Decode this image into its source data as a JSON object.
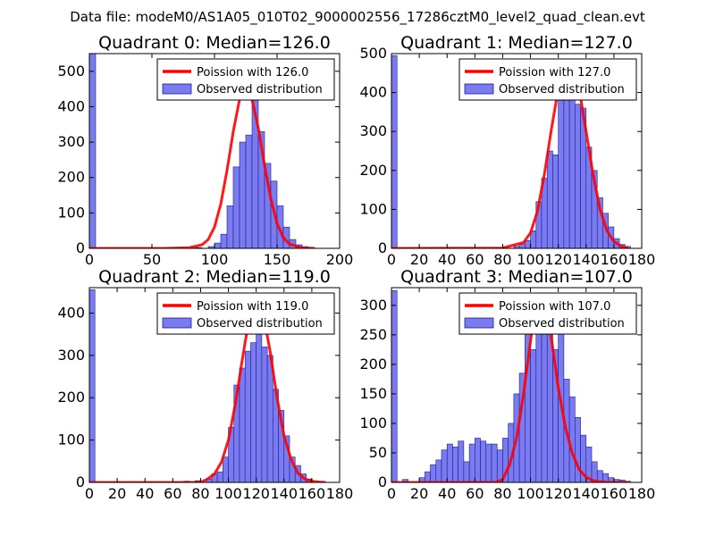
{
  "figure_title": "Data file: modeM0/AS1A05_010T02_9000002556_17286cztM0_level2_quad_clean.evt",
  "colors": {
    "hist_fill": "#7b7bf0",
    "hist_edge": "#1c1c9a",
    "poisson_line": "#ff0000",
    "axis": "#000000",
    "legend_border": "#000000"
  },
  "chart_data": [
    {
      "type": "bar",
      "title": "Quadrant 0: Median=126.0",
      "xlim": [
        0,
        200
      ],
      "ylim": [
        0,
        550
      ],
      "xticks": [
        0,
        50,
        100,
        150,
        200
      ],
      "yticks": [
        0,
        100,
        200,
        300,
        400,
        500
      ],
      "bin_width": 5,
      "hist": {
        "name": "Observed distribution",
        "bins": [
          [
            0,
            555
          ],
          [
            85,
            2
          ],
          [
            95,
            5
          ],
          [
            100,
            15
          ],
          [
            105,
            40
          ],
          [
            110,
            120
          ],
          [
            115,
            230
          ],
          [
            120,
            300
          ],
          [
            125,
            320
          ],
          [
            130,
            420
          ],
          [
            135,
            330
          ],
          [
            140,
            240
          ],
          [
            145,
            190
          ],
          [
            150,
            120
          ],
          [
            155,
            60
          ],
          [
            160,
            25
          ],
          [
            165,
            10
          ],
          [
            170,
            5
          ],
          [
            175,
            2
          ]
        ]
      },
      "poisson": {
        "name": "Poission with 126.0",
        "mean": 126.0,
        "x": [
          0,
          60,
          80,
          90,
          95,
          100,
          105,
          110,
          115,
          120,
          125,
          130,
          135,
          140,
          145,
          150,
          155,
          160,
          170,
          180
        ],
        "y": [
          0,
          0,
          2,
          10,
          25,
          60,
          125,
          220,
          330,
          420,
          455,
          420,
          340,
          235,
          140,
          70,
          30,
          12,
          1,
          0
        ]
      }
    },
    {
      "type": "bar",
      "title": "Quadrant 1: Median=127.0",
      "xlim": [
        0,
        180
      ],
      "ylim": [
        0,
        500
      ],
      "xticks": [
        0,
        20,
        40,
        60,
        80,
        100,
        120,
        140,
        160,
        180
      ],
      "yticks": [
        0,
        100,
        200,
        300,
        400,
        500
      ],
      "bin_width": 4,
      "hist": {
        "name": "Observed distribution",
        "bins": [
          [
            0,
            495
          ],
          [
            80,
            2
          ],
          [
            88,
            5
          ],
          [
            92,
            10
          ],
          [
            96,
            20
          ],
          [
            100,
            45
          ],
          [
            104,
            120
          ],
          [
            108,
            180
          ],
          [
            112,
            250
          ],
          [
            116,
            240
          ],
          [
            120,
            380
          ],
          [
            124,
            450
          ],
          [
            128,
            400
          ],
          [
            132,
            370
          ],
          [
            136,
            360
          ],
          [
            140,
            260
          ],
          [
            144,
            200
          ],
          [
            148,
            130
          ],
          [
            152,
            90
          ],
          [
            156,
            55
          ],
          [
            160,
            25
          ],
          [
            164,
            10
          ],
          [
            168,
            5
          ]
        ]
      },
      "poisson": {
        "name": "Poission with 127.0",
        "mean": 127.0,
        "x": [
          0,
          80,
          95,
          100,
          105,
          110,
          115,
          120,
          125,
          128,
          130,
          135,
          140,
          145,
          150,
          155,
          160,
          165,
          170
        ],
        "y": [
          0,
          1,
          15,
          40,
          95,
          190,
          305,
          410,
          470,
          480,
          470,
          410,
          300,
          190,
          100,
          45,
          18,
          6,
          1
        ]
      }
    },
    {
      "type": "bar",
      "title": "Quadrant 2: Median=119.0",
      "xlim": [
        0,
        180
      ],
      "ylim": [
        0,
        460
      ],
      "xticks": [
        0,
        20,
        40,
        60,
        80,
        100,
        120,
        140,
        160,
        180
      ],
      "yticks": [
        0,
        100,
        200,
        300,
        400
      ],
      "bin_width": 4,
      "hist": {
        "name": "Observed distribution",
        "bins": [
          [
            0,
            455
          ],
          [
            68,
            3
          ],
          [
            76,
            4
          ],
          [
            84,
            8
          ],
          [
            88,
            20
          ],
          [
            92,
            25
          ],
          [
            96,
            60
          ],
          [
            100,
            130
          ],
          [
            104,
            230
          ],
          [
            108,
            270
          ],
          [
            112,
            310
          ],
          [
            116,
            330
          ],
          [
            120,
            420
          ],
          [
            124,
            320
          ],
          [
            128,
            300
          ],
          [
            132,
            220
          ],
          [
            136,
            170
          ],
          [
            140,
            110
          ],
          [
            144,
            60
          ],
          [
            148,
            40
          ],
          [
            152,
            20
          ],
          [
            156,
            8
          ]
        ]
      },
      "poisson": {
        "name": "Poission with 119.0",
        "mean": 119.0,
        "x": [
          0,
          80,
          85,
          90,
          95,
          100,
          105,
          110,
          115,
          119,
          122,
          125,
          130,
          135,
          140,
          145,
          150,
          155,
          160,
          165,
          170
        ],
        "y": [
          0,
          0,
          8,
          20,
          48,
          100,
          185,
          290,
          390,
          435,
          430,
          400,
          310,
          200,
          110,
          55,
          22,
          8,
          3,
          1,
          0
        ]
      }
    },
    {
      "type": "bar",
      "title": "Quadrant 3: Median=107.0",
      "xlim": [
        0,
        180
      ],
      "ylim": [
        0,
        330
      ],
      "xticks": [
        0,
        20,
        40,
        60,
        80,
        100,
        120,
        140,
        160,
        180
      ],
      "yticks": [
        0,
        50,
        100,
        150,
        200,
        250,
        300
      ],
      "bin_width": 4,
      "hist": {
        "name": "Observed distribution",
        "bins": [
          [
            0,
            325
          ],
          [
            8,
            5
          ],
          [
            20,
            8
          ],
          [
            24,
            18
          ],
          [
            28,
            30
          ],
          [
            32,
            38
          ],
          [
            36,
            55
          ],
          [
            40,
            65
          ],
          [
            44,
            60
          ],
          [
            48,
            70
          ],
          [
            52,
            35
          ],
          [
            56,
            65
          ],
          [
            60,
            75
          ],
          [
            64,
            70
          ],
          [
            68,
            65
          ],
          [
            72,
            65
          ],
          [
            76,
            55
          ],
          [
            80,
            75
          ],
          [
            84,
            100
          ],
          [
            88,
            150
          ],
          [
            92,
            185
          ],
          [
            96,
            290
          ],
          [
            100,
            225
          ],
          [
            104,
            260
          ],
          [
            108,
            280
          ],
          [
            112,
            300
          ],
          [
            116,
            225
          ],
          [
            120,
            300
          ],
          [
            124,
            175
          ],
          [
            128,
            145
          ],
          [
            132,
            110
          ],
          [
            136,
            80
          ],
          [
            140,
            60
          ],
          [
            144,
            35
          ],
          [
            148,
            20
          ],
          [
            152,
            15
          ],
          [
            156,
            8
          ],
          [
            160,
            5
          ],
          [
            164,
            4
          ],
          [
            168,
            2
          ]
        ]
      },
      "poisson": {
        "name": "Poission with 107.0",
        "mean": 107.0,
        "x": [
          0,
          75,
          80,
          85,
          90,
          95,
          100,
          104,
          107,
          110,
          115,
          120,
          125,
          130,
          135,
          140,
          145,
          150,
          155,
          160,
          165,
          170
        ],
        "y": [
          0,
          0,
          5,
          30,
          75,
          150,
          240,
          300,
          310,
          300,
          245,
          160,
          95,
          50,
          22,
          9,
          3,
          1,
          0,
          0,
          0,
          0
        ]
      }
    }
  ]
}
